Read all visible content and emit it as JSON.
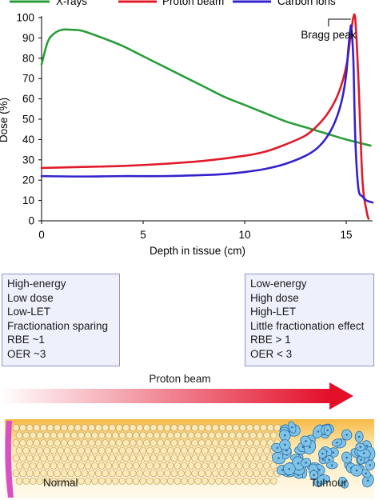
{
  "chart_data": {
    "type": "line",
    "title": "",
    "xlabel": "Depth in tissue (cm)",
    "ylabel": "Dose (%)",
    "xlim": [
      0,
      16.3
    ],
    "ylim": [
      0,
      100
    ],
    "xticks": [
      "0",
      "5",
      "10",
      "15"
    ],
    "yticks": [
      "0",
      "10",
      "20",
      "30",
      "40",
      "50",
      "60",
      "70",
      "80",
      "90",
      "100"
    ],
    "legend_placement": "top",
    "grid": false,
    "series": [
      {
        "name": "X-rays",
        "color": "#2a9d3a",
        "x": [
          0,
          0.3,
          0.6,
          1.0,
          1.5,
          2.0,
          3,
          4,
          5,
          6,
          7,
          8,
          9,
          10,
          11,
          12,
          13,
          14,
          15,
          16.2
        ],
        "y": [
          77,
          88,
          92,
          94,
          94,
          93.5,
          90,
          86,
          81,
          76,
          71,
          66,
          61,
          57,
          53,
          49,
          46,
          43,
          40,
          37
        ]
      },
      {
        "name": "Proton beam",
        "color": "#e01a2a",
        "x": [
          0,
          2,
          4,
          6,
          8,
          10,
          11,
          12,
          13,
          13.6,
          14.1,
          14.5,
          14.8,
          15.0,
          15.1,
          15.2,
          15.3,
          15.35,
          15.45,
          15.6,
          15.8,
          16.0,
          16.1
        ],
        "y": [
          26,
          26.5,
          27,
          28,
          29.5,
          32,
          34,
          37.5,
          42,
          47,
          53,
          60,
          68,
          76,
          82,
          90,
          97,
          100,
          99,
          70,
          20,
          5,
          1
        ]
      },
      {
        "name": "Carbon ions",
        "color": "#3322cc",
        "x": [
          0,
          2,
          4,
          6,
          8,
          9,
          10,
          11,
          12,
          13,
          13.6,
          14.1,
          14.5,
          14.8,
          15.0,
          15.1,
          15.2,
          15.25,
          15.35,
          15.45,
          15.6,
          15.8,
          16.0,
          16.3
        ],
        "y": [
          22,
          21.8,
          22,
          22,
          22.5,
          23,
          24,
          25.5,
          28,
          32,
          36,
          42,
          50,
          60,
          72,
          84,
          94,
          95,
          80,
          40,
          16,
          12,
          10,
          9
        ]
      }
    ],
    "annotations": [
      {
        "text": "Bragg peak",
        "x": 15.35,
        "y": 100
      }
    ]
  },
  "left_box": {
    "lines": [
      "High-energy",
      "Low dose",
      "Low-LET",
      "Fractionation sparing",
      "RBE ~1",
      "OER ~3"
    ]
  },
  "right_box": {
    "lines": [
      "Low-energy",
      "High dose",
      "High-LET",
      "Little fractionation effect",
      "RBE > 1",
      "OER < 3"
    ]
  },
  "beam": {
    "label": "Proton beam",
    "gradient_start": "#ffffff",
    "gradient_end": "#e3102a"
  },
  "tissue": {
    "normal_label": "Normal",
    "tumour_label": "Tumour",
    "cell_color": "#fbe9b8",
    "tumour_cell_color": "#7fc3e8",
    "skin_color": "#d84fc6"
  }
}
